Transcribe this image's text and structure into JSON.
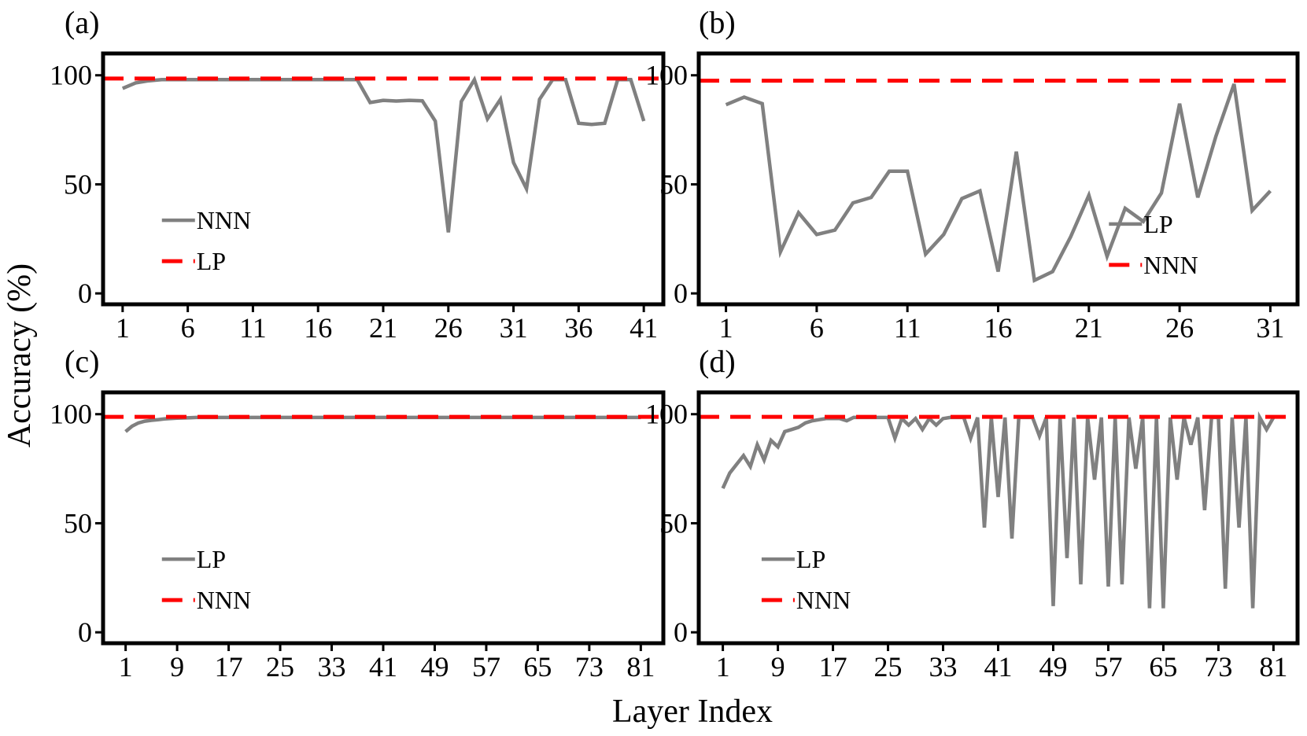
{
  "figure": {
    "xlabel": "Layer Index",
    "ylabel": "Accuracy (%)"
  },
  "chart_data": [
    {
      "type": "line",
      "panel": "(a)",
      "xlabel": "",
      "ylabel": "",
      "xlim": [
        -0.5,
        42.5
      ],
      "ylim": [
        -5,
        110
      ],
      "xticks": [
        1,
        6,
        11,
        16,
        21,
        26,
        31,
        36,
        41
      ],
      "yticks": [
        0,
        50,
        100
      ],
      "legend_placement": "lower-left",
      "series": [
        {
          "name": "NNN",
          "style": "solid",
          "color": "#808080",
          "x": [
            1,
            2,
            3,
            4,
            5,
            6,
            7,
            8,
            9,
            10,
            11,
            12,
            13,
            14,
            15,
            16,
            17,
            18,
            19,
            20,
            21,
            22,
            23,
            24,
            25,
            26,
            27,
            28,
            29,
            30,
            31,
            32,
            33,
            34,
            35,
            36,
            37,
            38,
            39,
            40,
            41
          ],
          "y": [
            94,
            96.5,
            97.5,
            98,
            98,
            98,
            98,
            98,
            98,
            98,
            98,
            98,
            98,
            98,
            98,
            98,
            98,
            98,
            98,
            87.5,
            88.5,
            88.2,
            88.5,
            88.3,
            79,
            28,
            88,
            98,
            80,
            89,
            60,
            48,
            89,
            98,
            98,
            78,
            77.5,
            78,
            98,
            98,
            79
          ]
        },
        {
          "name": "LP",
          "style": "dashed",
          "color": "#ff0000",
          "constant": 98.5
        }
      ]
    },
    {
      "type": "line",
      "panel": "(b)",
      "xlabel": "",
      "ylabel": "",
      "xlim": [
        -0.5,
        32.5
      ],
      "ylim": [
        -5,
        110
      ],
      "xticks": [
        1,
        6,
        11,
        16,
        21,
        26,
        31
      ],
      "yticks": [
        0,
        50,
        100
      ],
      "legend_placement": "lower-right",
      "series": [
        {
          "name": "LP",
          "style": "solid",
          "color": "#808080",
          "x": [
            1,
            2,
            3,
            4,
            5,
            6,
            7,
            8,
            9,
            10,
            11,
            12,
            13,
            14,
            15,
            16,
            17,
            18,
            19,
            20,
            21,
            22,
            23,
            24,
            25,
            26,
            27,
            28,
            29,
            30,
            31
          ],
          "y": [
            86.5,
            90,
            87,
            19,
            37,
            27,
            29,
            41.5,
            44,
            56,
            56,
            18,
            27,
            43.5,
            47,
            10,
            65,
            6,
            10,
            26,
            45,
            17,
            39,
            33,
            46,
            87,
            44,
            72,
            96,
            38,
            47
          ]
        },
        {
          "name": "NNN",
          "style": "dashed",
          "color": "#ff0000",
          "constant": 97.5
        }
      ]
    },
    {
      "type": "line",
      "panel": "(c)",
      "xlabel": "",
      "ylabel": "",
      "xlim": [
        -2.5,
        84.5
      ],
      "ylim": [
        -5,
        110
      ],
      "xticks": [
        1,
        9,
        17,
        25,
        33,
        41,
        49,
        57,
        65,
        73,
        81
      ],
      "yticks": [
        0,
        50,
        100
      ],
      "legend_placement": "lower-left",
      "series": [
        {
          "name": "LP",
          "style": "solid",
          "color": "#808080",
          "x": [
            1,
            2,
            3,
            4,
            5,
            6,
            7,
            8,
            9,
            10,
            11,
            12,
            13,
            14,
            15,
            16,
            17,
            18,
            19,
            20,
            21,
            22,
            23,
            24,
            25,
            26,
            27,
            28,
            29,
            30,
            31,
            32,
            33,
            34,
            35,
            36,
            37,
            38,
            39,
            40,
            41,
            42,
            43,
            44,
            45,
            46,
            47,
            48,
            49,
            50,
            51,
            52,
            53,
            54,
            55,
            56,
            57,
            58,
            59,
            60,
            61,
            62,
            63,
            64,
            65,
            66,
            67,
            68,
            69,
            70,
            71,
            72,
            73,
            74,
            75,
            76,
            77,
            78,
            79,
            80,
            81
          ],
          "y": [
            92,
            94.5,
            96,
            96.8,
            97.2,
            97.5,
            97.8,
            98,
            98.2,
            98.3,
            98.4,
            98.5,
            98.5,
            98.5,
            98.5,
            98.5,
            98.5,
            98.5,
            98.5,
            98.5,
            98.5,
            98.5,
            98.5,
            98.5,
            98.5,
            98.5,
            98.5,
            98.5,
            98.5,
            98.5,
            98.5,
            98.5,
            98.5,
            98.5,
            98.5,
            98.5,
            98.5,
            98.5,
            98.5,
            98.5,
            98.5,
            98.5,
            98.5,
            98.5,
            98.5,
            98.5,
            98.5,
            98.5,
            98.5,
            98.5,
            98.5,
            98.5,
            98.5,
            98.5,
            98.5,
            98.5,
            98.5,
            98.5,
            98.5,
            98.5,
            98.5,
            98.5,
            98.5,
            98.5,
            98.5,
            98.5,
            98.5,
            98.5,
            98.5,
            98.5,
            98.5,
            98.5,
            98.5,
            98.5,
            98.5,
            98.5,
            98.5,
            98.5,
            98.5,
            98.5,
            98.5
          ]
        },
        {
          "name": "NNN",
          "style": "dashed",
          "color": "#ff0000",
          "constant": 98.8
        }
      ]
    },
    {
      "type": "line",
      "panel": "(d)",
      "xlabel": "",
      "ylabel": "",
      "xlim": [
        -2.5,
        84.5
      ],
      "ylim": [
        -5,
        110
      ],
      "xticks": [
        1,
        9,
        17,
        25,
        33,
        41,
        49,
        57,
        65,
        73,
        81
      ],
      "yticks": [
        0,
        50,
        100
      ],
      "legend_placement": "lower-left",
      "series": [
        {
          "name": "LP",
          "style": "solid",
          "color": "#808080",
          "x": [
            1,
            2,
            3,
            4,
            5,
            6,
            7,
            8,
            9,
            10,
            11,
            12,
            13,
            14,
            15,
            16,
            17,
            18,
            19,
            20,
            21,
            22,
            23,
            24,
            25,
            26,
            27,
            28,
            29,
            30,
            31,
            32,
            33,
            34,
            35,
            36,
            37,
            38,
            39,
            40,
            41,
            42,
            43,
            44,
            45,
            46,
            47,
            48,
            49,
            50,
            51,
            52,
            53,
            54,
            55,
            56,
            57,
            58,
            59,
            60,
            61,
            62,
            63,
            64,
            65,
            66,
            67,
            68,
            69,
            70,
            71,
            72,
            73,
            74,
            75,
            76,
            77,
            78,
            79,
            80,
            81
          ],
          "y": [
            66,
            73,
            77,
            81,
            76,
            86,
            79,
            88,
            85,
            92,
            93,
            94,
            96,
            97,
            97.5,
            98,
            98,
            98,
            97,
            98.5,
            98.5,
            98.5,
            98.5,
            98.5,
            98.5,
            89,
            98,
            95,
            98,
            93,
            98,
            95,
            98,
            98.5,
            98.5,
            98.5,
            89,
            98.5,
            48,
            98.5,
            62,
            98.5,
            43,
            98.5,
            98.5,
            98.5,
            90,
            98.5,
            12,
            98.5,
            34,
            98.5,
            22,
            98.5,
            70,
            98.5,
            21,
            98.5,
            22,
            98.5,
            75,
            98.5,
            11,
            98.5,
            11,
            98.5,
            70,
            98.5,
            86,
            98.5,
            56,
            98.5,
            98.5,
            20,
            98.5,
            48,
            98.5,
            11,
            98.5,
            93,
            98.5
          ]
        },
        {
          "name": "NNN",
          "style": "dashed",
          "color": "#ff0000",
          "constant": 98.8
        }
      ]
    }
  ]
}
